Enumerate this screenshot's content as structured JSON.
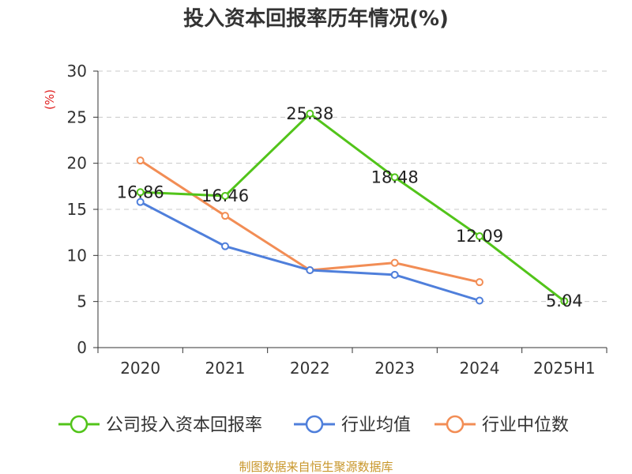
{
  "chart_data": {
    "type": "line",
    "title": "投入资本回报率历年情况(%)",
    "ylabel": "(%)",
    "categories": [
      "2020",
      "2021",
      "2022",
      "2023",
      "2024",
      "2025H1"
    ],
    "ylim": [
      0,
      30
    ],
    "yticks": [
      0,
      5,
      10,
      15,
      20,
      25,
      30
    ],
    "grid": "horizontal dashed",
    "legend_position": "bottom",
    "series": [
      {
        "name": "公司投入资本回报率",
        "color": "#52c41a",
        "values": [
          16.86,
          16.46,
          25.38,
          18.48,
          12.09,
          5.04
        ],
        "labels": [
          "16.86",
          "16.46",
          "25.38",
          "18.48",
          "12.09",
          "5.04"
        ]
      },
      {
        "name": "行业均值",
        "color": "#4f7fdb",
        "values": [
          15.8,
          11.0,
          8.4,
          7.9,
          5.1,
          null
        ]
      },
      {
        "name": "行业中位数",
        "color": "#f28d55",
        "values": [
          20.3,
          14.3,
          8.4,
          9.2,
          7.1,
          null
        ]
      }
    ],
    "source": "制图数据来自恒生聚源数据库"
  }
}
